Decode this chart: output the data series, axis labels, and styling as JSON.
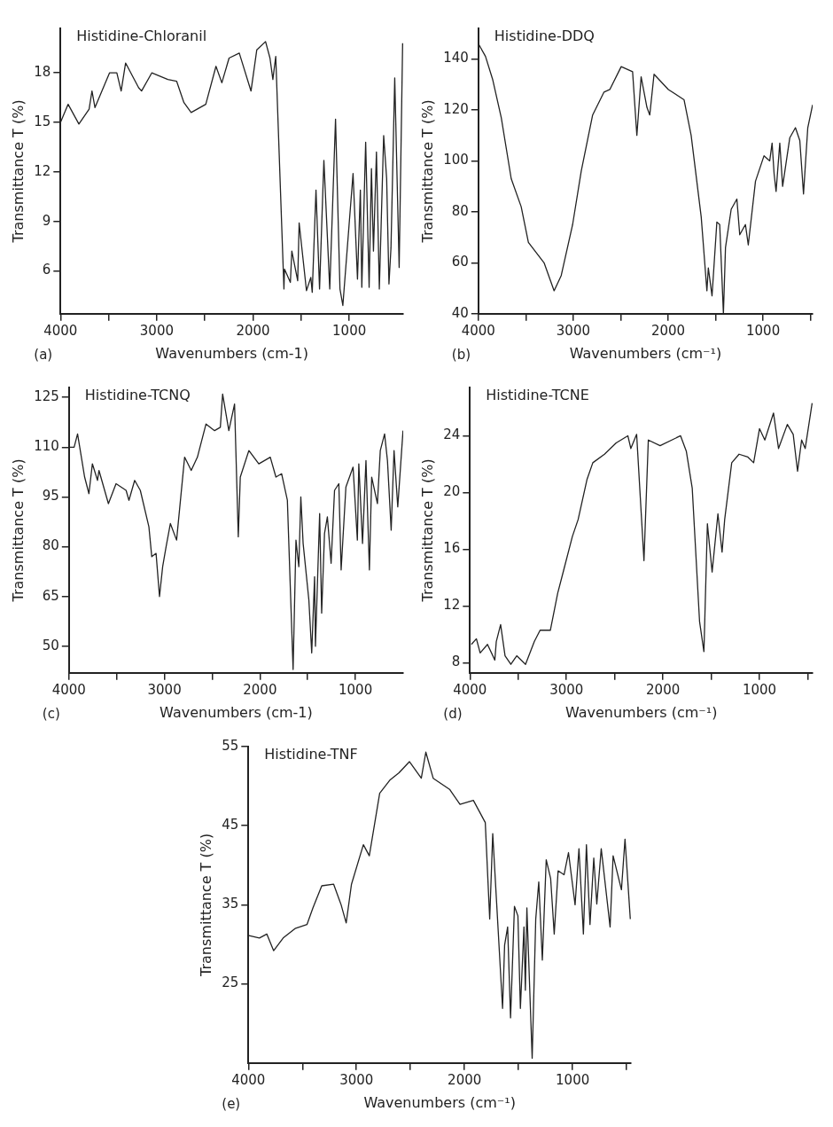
{
  "chart_data": [
    {
      "type": "line",
      "title": "Histidine-Chloranil",
      "xlabel": "Wavenumbers (cm-1)",
      "ylabel": "Transmittance T (%)",
      "annotations": [
        "(a)"
      ],
      "marker": "none",
      "xlim": [
        4000,
        440
      ],
      "ylim": [
        3.4,
        20.7
      ],
      "xticks": [
        4000,
        {
          "value": 3500,
          "label": null
        },
        3000,
        {
          "value": 2500,
          "label": null
        },
        2000,
        {
          "value": 1500,
          "label": null
        },
        1000
      ],
      "yticks": [
        6,
        9,
        12,
        15,
        18
      ],
      "x": [
        4000,
        3921,
        3809,
        3703,
        3673,
        3642,
        3491,
        3415,
        3370,
        3324,
        3188,
        3158,
        3052,
        2885,
        2794,
        2718,
        2643,
        2491,
        2385,
        2324,
        2249,
        2143,
        2021,
        1961,
        1870,
        1824,
        1794,
        1764,
        1679,
        1673,
        1612,
        1597,
        1536,
        1521,
        1445,
        1400,
        1385,
        1346,
        1309,
        1264,
        1203,
        1143,
        1097,
        1067,
        961,
        915,
        885,
        870,
        830,
        794,
        770,
        749,
        718,
        688,
        643,
        612,
        588,
        567,
        528,
        482,
        446
      ],
      "series": [
        {
          "color": "#222222",
          "values": [
            15.0,
            16.1,
            14.9,
            15.8,
            16.9,
            15.9,
            18.0,
            18.0,
            16.9,
            18.6,
            17.1,
            16.9,
            18.0,
            17.6,
            17.5,
            16.2,
            15.6,
            16.1,
            18.4,
            17.4,
            18.9,
            19.2,
            16.9,
            19.4,
            19.9,
            18.9,
            17.6,
            19.0,
            4.9,
            6.1,
            5.3,
            7.2,
            5.4,
            8.9,
            4.8,
            5.6,
            4.7,
            10.9,
            4.9,
            12.7,
            4.9,
            15.2,
            4.9,
            3.9,
            11.9,
            5.5,
            10.9,
            5.0,
            13.8,
            5.0,
            12.2,
            7.2,
            13.2,
            4.9,
            14.2,
            11.6,
            5.2,
            7.4,
            17.7,
            6.2,
            19.8
          ]
        }
      ]
    },
    {
      "type": "line",
      "title": "Histidine-DDQ",
      "xlabel": "Wavenumbers (cm⁻¹)",
      "ylabel": "Transmittance T (%)",
      "annotations": [
        "(b)"
      ],
      "marker": "none",
      "xlim": [
        4000,
        478
      ],
      "ylim": [
        40,
        152
      ],
      "xticks": [
        4000,
        {
          "value": 3500,
          "label": null
        },
        3000,
        {
          "value": 2500,
          "label": null
        },
        2000,
        {
          "value": 1500,
          "label": null
        },
        1000,
        {
          "value": 500,
          "label": null
        }
      ],
      "yticks": [
        40,
        60,
        80,
        100,
        120,
        140
      ],
      "x": [
        4000,
        3925,
        3850,
        3759,
        3654,
        3549,
        3473,
        3308,
        3202,
        3127,
        3007,
        2916,
        2796,
        2676,
        2615,
        2495,
        2375,
        2330,
        2285,
        2224,
        2194,
        2149,
        1998,
        1833,
        1758,
        1652,
        1592,
        1577,
        1538,
        1487,
        1457,
        1418,
        1396,
        1336,
        1276,
        1246,
        1186,
        1156,
        1080,
        990,
        930,
        905,
        884,
        863,
        824,
        794,
        719,
        659,
        613,
        574,
        529,
        478
      ],
      "series": [
        {
          "color": "#222222",
          "values": [
            146,
            141,
            132,
            117,
            93,
            82,
            68,
            60,
            49,
            55,
            75,
            96,
            118,
            127,
            128,
            137,
            135,
            110,
            133,
            121,
            118,
            134,
            128,
            124,
            110,
            78,
            49,
            58,
            47,
            76,
            75,
            40,
            66,
            81,
            85,
            71,
            75,
            67,
            92,
            102,
            100,
            107,
            95,
            88,
            107,
            90,
            109,
            113,
            108,
            87,
            113,
            122
          ]
        }
      ]
    },
    {
      "type": "line",
      "title": "Histidine-TCNQ",
      "xlabel": "Wavenumbers (cm-1)",
      "ylabel": "Transmittance T (%)",
      "annotations": [
        "(c)"
      ],
      "marker": "none",
      "xlim": [
        4000,
        500
      ],
      "ylim": [
        42,
        128
      ],
      "xticks": [
        4000,
        {
          "value": 3500,
          "label": null
        },
        3000,
        {
          "value": 2500,
          "label": null
        },
        2000,
        {
          "value": 1500,
          "label": null
        },
        1000
      ],
      "yticks": [
        50,
        65,
        80,
        95,
        110,
        125
      ],
      "x": [
        4000,
        3946,
        3910,
        3836,
        3791,
        3755,
        3701,
        3686,
        3587,
        3507,
        3402,
        3372,
        3312,
        3253,
        3163,
        3133,
        3088,
        3052,
        3019,
        2983,
        2938,
        2873,
        2789,
        2720,
        2655,
        2565,
        2475,
        2415,
        2391,
        2326,
        2266,
        2227,
        2206,
        2116,
        2012,
        1892,
        1833,
        1773,
        1713,
        1653,
        1623,
        1593,
        1572,
        1548,
        1488,
        1458,
        1428,
        1419,
        1375,
        1354,
        1324,
        1294,
        1255,
        1219,
        1174,
        1150,
        1100,
        1025,
        980,
        965,
        926,
        890,
        854,
        830,
        770,
        740,
        695,
        665,
        626,
        596,
        557,
        502
      ],
      "series": [
        {
          "color": "#222222",
          "values": [
            110,
            110,
            114,
            101,
            96,
            105,
            100,
            103,
            93,
            99,
            97,
            94,
            100,
            97,
            86,
            77,
            78,
            65,
            74,
            80,
            87,
            82,
            107,
            103,
            107,
            117,
            115,
            116,
            126,
            115,
            123,
            83,
            101,
            109,
            105,
            107,
            101,
            102,
            94,
            43,
            82,
            74,
            95,
            81,
            64,
            48,
            71,
            50,
            90,
            60,
            84,
            89,
            75,
            97,
            99,
            73,
            98,
            104,
            82,
            105,
            81,
            106,
            73,
            101,
            93,
            109,
            114,
            106,
            85,
            109,
            92,
            115
          ]
        }
      ]
    },
    {
      "type": "line",
      "title": "Histidine-TCNE",
      "xlabel": "Wavenumbers (cm⁻¹)",
      "ylabel": "Transmittance T (%)",
      "annotations": [
        "(d)"
      ],
      "marker": "none",
      "xlim": [
        4000,
        450
      ],
      "ylim": [
        7.3,
        27.4
      ],
      "xticks": [
        4000,
        {
          "value": 3500,
          "label": null
        },
        3000,
        {
          "value": 2500,
          "label": null
        },
        2000,
        {
          "value": 1500,
          "label": null
        },
        1000,
        {
          "value": 500,
          "label": null
        }
      ],
      "yticks": [
        8,
        12,
        16,
        20,
        24
      ],
      "x": [
        3985,
        3933,
        3894,
        3818,
        3742,
        3727,
        3682,
        3636,
        3576,
        3515,
        3424,
        3333,
        3273,
        3167,
        3091,
        3030,
        2939,
        2879,
        2788,
        2727,
        2606,
        2485,
        2364,
        2333,
        2273,
        2197,
        2152,
        2030,
        1818,
        1758,
        1697,
        1621,
        1576,
        1540,
        1491,
        1431,
        1388,
        1361,
        1288,
        1212,
        1121,
        1061,
        1000,
        945,
        855,
        803,
        712,
        651,
        606,
        564,
        527,
        455
      ],
      "series": [
        {
          "color": "#222222",
          "values": [
            9.3,
            9.7,
            8.7,
            9.3,
            8.2,
            9.5,
            10.7,
            8.5,
            7.9,
            8.5,
            7.9,
            9.5,
            10.3,
            10.3,
            12.9,
            14.5,
            16.9,
            18.1,
            20.9,
            22.1,
            22.7,
            23.5,
            24.0,
            23.1,
            24.1,
            15.2,
            23.7,
            23.3,
            24.0,
            22.9,
            20.3,
            10.9,
            8.8,
            17.8,
            14.4,
            18.5,
            15.8,
            18.1,
            22.1,
            22.7,
            22.5,
            22.1,
            24.5,
            23.7,
            25.6,
            23.1,
            24.8,
            24.1,
            21.5,
            23.7,
            23.1,
            26.3
          ]
        }
      ]
    },
    {
      "type": "line",
      "title": "Histidine-TNF",
      "xlabel": "Wavenumbers (cm⁻¹)",
      "ylabel": "Transmittance T (%)",
      "annotations": [
        "(e)"
      ],
      "marker": "none",
      "xlim": [
        4000,
        460
      ],
      "ylim": [
        15,
        55
      ],
      "xticks": [
        4000,
        {
          "value": 3500,
          "label": null
        },
        3000,
        {
          "value": 2500,
          "label": null
        },
        2000,
        {
          "value": 1500,
          "label": null
        },
        1000,
        {
          "value": 500,
          "label": null
        }
      ],
      "yticks": [
        25,
        35,
        45,
        55
      ],
      "x": [
        3995,
        3898,
        3829,
        3766,
        3678,
        3568,
        3458,
        3403,
        3321,
        3211,
        3142,
        3095,
        3046,
        2936,
        2881,
        2785,
        2688,
        2606,
        2510,
        2400,
        2358,
        2290,
        2138,
        2042,
        1918,
        1808,
        1767,
        1739,
        1648,
        1629,
        1601,
        1574,
        1538,
        1506,
        1483,
        1450,
        1437,
        1423,
        1374,
        1341,
        1313,
        1280,
        1244,
        1203,
        1170,
        1134,
        1079,
        1038,
        977,
        941,
        900,
        872,
        839,
        804,
        776,
        735,
        653,
        625,
        548,
        515,
        466
      ],
      "series": [
        {
          "color": "#222222",
          "values": [
            31.1,
            30.8,
            31.3,
            29.2,
            30.8,
            32.0,
            32.5,
            34.6,
            37.4,
            37.6,
            35.0,
            32.7,
            37.6,
            42.6,
            41.2,
            49.1,
            50.8,
            51.7,
            53.1,
            51.0,
            54.3,
            51.0,
            49.6,
            47.7,
            48.2,
            45.4,
            33.2,
            44.0,
            21.9,
            29.9,
            32.2,
            20.7,
            34.8,
            33.6,
            21.9,
            32.2,
            24.2,
            34.6,
            15.6,
            33.2,
            37.9,
            28.0,
            40.7,
            38.3,
            31.3,
            39.3,
            38.8,
            41.6,
            35.0,
            42.1,
            31.3,
            42.6,
            32.5,
            40.9,
            35.1,
            42.1,
            32.2,
            41.2,
            36.9,
            43.3,
            33.2
          ]
        }
      ]
    }
  ]
}
